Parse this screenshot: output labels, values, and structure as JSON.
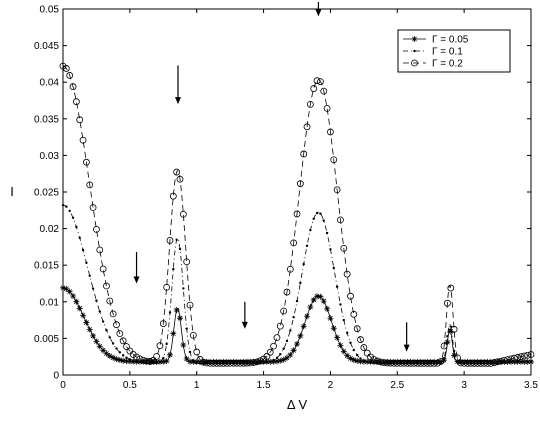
{
  "chart_data": {
    "type": "line",
    "xlabel": "Δ V",
    "ylabel": "I",
    "xlim": [
      0,
      3.5
    ],
    "ylim": [
      0,
      0.05
    ],
    "xticks": [
      0,
      0.5,
      1,
      1.5,
      2,
      2.5,
      3,
      3.5
    ],
    "xtick_labels": [
      "0",
      "0.5",
      "1",
      "1.5",
      "2",
      "2.5",
      "3",
      "3.5"
    ],
    "yticks": [
      0,
      0.005,
      0.01,
      0.015,
      0.02,
      0.025,
      0.03,
      0.035,
      0.04,
      0.045,
      0.05
    ],
    "ytick_labels": [
      "0",
      "0.005",
      "0.01",
      "0.015",
      "0.02",
      "0.025",
      "0.03",
      "0.035",
      "0.04",
      "0.045",
      "0.05"
    ],
    "grid": false,
    "legend_position": "top-right",
    "series": [
      {
        "name": "Γ = 0.05",
        "marker": "asterisk",
        "line": "solid",
        "peaks": [
          {
            "x": 0.0,
            "y": 0.0119,
            "w": 0.22
          },
          {
            "x": 0.857,
            "y": 0.0091,
            "w": 0.04
          },
          {
            "x": 1.91,
            "y": 0.0108,
            "w": 0.14
          },
          {
            "x": 2.893,
            "y": 0.0063,
            "w": 0.025
          }
        ],
        "baseline": 0.0018,
        "end_rise": 0.0
      },
      {
        "name": "Γ = 0.1",
        "marker": "dot",
        "line": "dash-dot",
        "peaks": [
          {
            "x": 0.0,
            "y": 0.0232,
            "w": 0.26
          },
          {
            "x": 0.857,
            "y": 0.0187,
            "w": 0.06
          },
          {
            "x": 1.91,
            "y": 0.0222,
            "w": 0.17
          },
          {
            "x": 2.893,
            "y": 0.0069,
            "w": 0.03
          }
        ],
        "baseline": 0.0016,
        "end_rise": 0.0003
      },
      {
        "name": "Γ = 0.2",
        "marker": "circle",
        "line": "dashed",
        "peaks": [
          {
            "x": 0.0,
            "y": 0.0422,
            "w": 0.28
          },
          {
            "x": 0.857,
            "y": 0.0279,
            "w": 0.085
          },
          {
            "x": 1.91,
            "y": 0.0403,
            "w": 0.2
          },
          {
            "x": 2.893,
            "y": 0.0123,
            "w": 0.035
          }
        ],
        "baseline": 0.0016,
        "end_rise": 0.0012
      }
    ],
    "annotations": [
      {
        "type": "arrow-down",
        "x": 0.55,
        "y_top": 0.0168,
        "y_tip": 0.0125
      },
      {
        "type": "arrow-down",
        "x": 0.86,
        "y_top": 0.0423,
        "y_tip": 0.037
      },
      {
        "type": "arrow-down",
        "x": 1.36,
        "y_top": 0.01,
        "y_tip": 0.0063
      },
      {
        "type": "arrow-down",
        "x": 1.91,
        "y_top": 0.054,
        "y_tip": 0.049
      },
      {
        "type": "arrow-down",
        "x": 2.57,
        "y_top": 0.0072,
        "y_tip": 0.0032
      }
    ]
  }
}
